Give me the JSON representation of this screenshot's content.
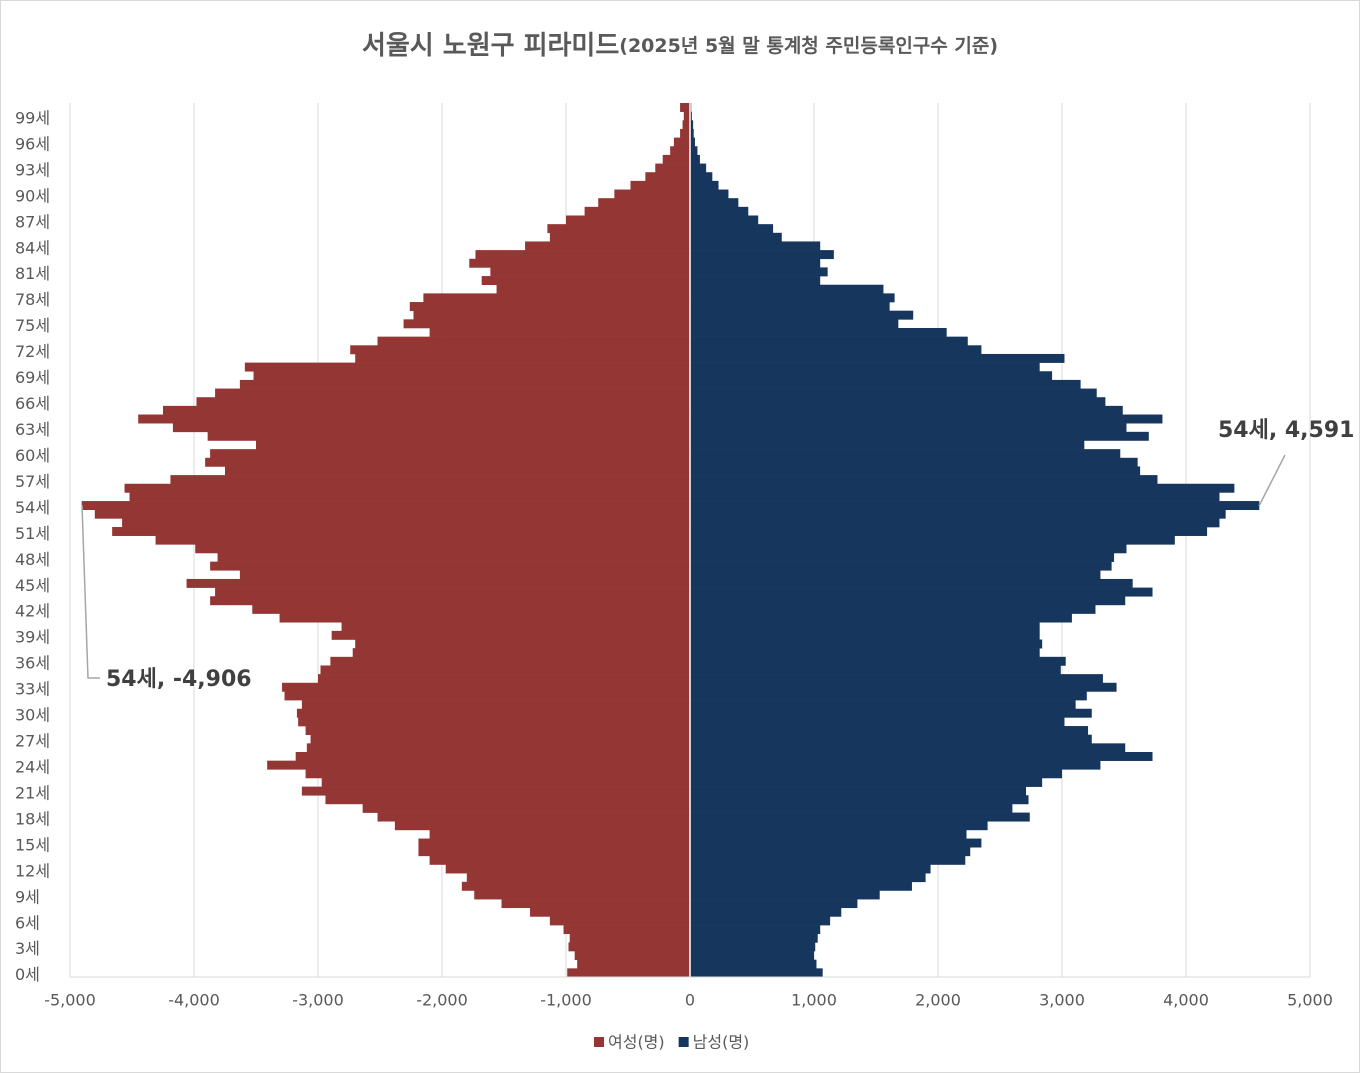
{
  "chart_data": {
    "type": "pyramid",
    "title": "서울시 노원구 피라미드",
    "subtitle": "(2025년 5월 말 통계청 주민등록인구수 기준)",
    "categories": [
      "0세",
      null,
      null,
      "3세",
      null,
      null,
      "6세",
      null,
      null,
      "9세",
      null,
      null,
      "12세",
      null,
      null,
      "15세",
      null,
      null,
      "18세",
      null,
      null,
      "21세",
      null,
      null,
      "24세",
      null,
      null,
      "27세",
      null,
      null,
      "30세",
      null,
      null,
      "33세",
      null,
      null,
      "36세",
      null,
      null,
      "39세",
      null,
      null,
      "42세",
      null,
      null,
      "45세",
      null,
      null,
      "48세",
      null,
      null,
      "51세",
      null,
      null,
      "54세",
      null,
      null,
      "57세",
      null,
      null,
      "60세",
      null,
      null,
      "63세",
      null,
      null,
      "66세",
      null,
      null,
      "69세",
      null,
      null,
      "72세",
      null,
      null,
      "75세",
      null,
      null,
      "78세",
      null,
      null,
      "81세",
      null,
      null,
      "84세",
      null,
      null,
      "87세",
      null,
      null,
      "90세",
      null,
      null,
      "93세",
      null,
      null,
      "96세",
      null,
      null,
      "99세",
      null
    ],
    "series": [
      {
        "name": "여성(명)",
        "color": "#943634",
        "values": [
          -990,
          -910,
          -930,
          -980,
          -970,
          -1020,
          -1130,
          -1290,
          -1520,
          -1740,
          -1840,
          -1800,
          -1970,
          -2100,
          -2190,
          -2190,
          -2100,
          -2380,
          -2520,
          -2640,
          -2940,
          -3130,
          -2970,
          -3100,
          -3410,
          -3180,
          -3090,
          -3060,
          -3100,
          -3160,
          -3170,
          -3130,
          -3270,
          -3290,
          -3000,
          -2980,
          -2900,
          -2720,
          -2700,
          -2890,
          -2810,
          -3310,
          -3530,
          -3870,
          -3830,
          -4060,
          -3630,
          -3870,
          -3810,
          -3990,
          -4310,
          -4660,
          -4580,
          -4800,
          -4906,
          -4520,
          -4560,
          -4190,
          -3750,
          -3910,
          -3870,
          -3500,
          -3890,
          -4170,
          -4450,
          -4250,
          -3980,
          -3830,
          -3630,
          -3520,
          -3590,
          -2700,
          -2740,
          -2520,
          -2100,
          -2310,
          -2230,
          -2260,
          -2150,
          -1560,
          -1680,
          -1610,
          -1780,
          -1730,
          -1330,
          -1130,
          -1150,
          -1000,
          -850,
          -740,
          -610,
          -480,
          -360,
          -280,
          -220,
          -160,
          -130,
          -80,
          -60,
          -50,
          -80
        ]
      },
      {
        "name": "남성(명)",
        "color": "#17365d",
        "values": [
          1070,
          1020,
          1000,
          1010,
          1030,
          1050,
          1130,
          1220,
          1350,
          1530,
          1790,
          1900,
          1940,
          2220,
          2260,
          2350,
          2230,
          2400,
          2740,
          2600,
          2730,
          2710,
          2840,
          3000,
          3310,
          3730,
          3510,
          3240,
          3210,
          3020,
          3240,
          3110,
          3200,
          3440,
          3330,
          2990,
          3030,
          2820,
          2840,
          2820,
          2820,
          3080,
          3270,
          3510,
          3730,
          3570,
          3310,
          3400,
          3420,
          3520,
          3910,
          4170,
          4270,
          4320,
          4591,
          4270,
          4390,
          3770,
          3630,
          3610,
          3470,
          3180,
          3700,
          3520,
          3810,
          3490,
          3350,
          3280,
          3150,
          2920,
          2820,
          3020,
          2350,
          2240,
          2070,
          1680,
          1800,
          1610,
          1650,
          1560,
          1050,
          1110,
          1050,
          1160,
          1050,
          740,
          670,
          550,
          470,
          390,
          310,
          230,
          180,
          130,
          80,
          60,
          40,
          30,
          25,
          15,
          10
        ]
      }
    ],
    "xlim": [
      -5000,
      5000
    ],
    "xticks": [
      {
        "value": -5000,
        "label": "-5,000"
      },
      {
        "value": -4000,
        "label": "-4,000"
      },
      {
        "value": -3000,
        "label": "-3,000"
      },
      {
        "value": -2000,
        "label": "-2,000"
      },
      {
        "value": -1000,
        "label": "-1,000"
      },
      0,
      {
        "value": 1000,
        "label": "1,000"
      },
      {
        "value": 2000,
        "label": "2,000"
      },
      {
        "value": 3000,
        "label": "3,000"
      },
      {
        "value": 4000,
        "label": "4,000"
      },
      {
        "value": 5000,
        "label": "5,000"
      }
    ],
    "grid": true,
    "legend": "bottom",
    "annotations": [
      "54세, -4,906",
      "54세, 4,591"
    ]
  }
}
